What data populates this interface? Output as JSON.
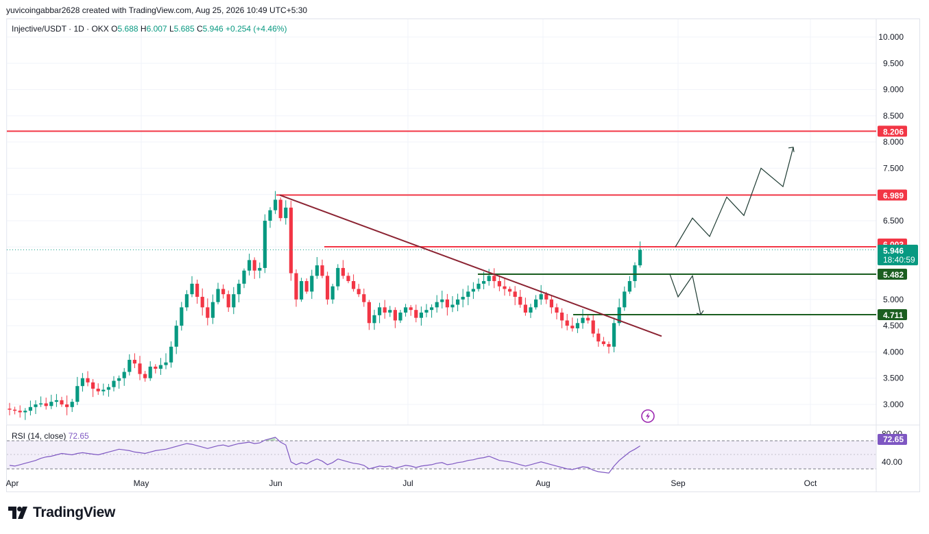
{
  "header": {
    "caption": "yuvicoingabbar2628 created with TradingView.com, Aug 25, 2026 10:49 UTC+5:30"
  },
  "legend": {
    "symbol": "Injective/USDT · 1D · OKX",
    "o_label": "O",
    "o": "5.688",
    "h_label": "H",
    "h": "6.007",
    "l_label": "L",
    "l": "5.685",
    "c_label": "C",
    "c": "5.946",
    "change": "+0.254 (+4.46%)"
  },
  "rsi_legend": {
    "label": "RSI (14, close)",
    "value": "72.65"
  },
  "brand": {
    "name": "TradingView",
    "logo_icon": "tradingview-logo-icon"
  },
  "colors": {
    "up": "#089981",
    "down": "#f23645",
    "resistance": "#f23645",
    "support": "#1b5e20",
    "trendline": "#8b2332",
    "rsi": "#7e57c2",
    "axis_text": "#131722",
    "grid": "#f0f3fa"
  },
  "chart_data": {
    "type": "candlestick",
    "symbol": "Injective/USDT",
    "interval": "1D",
    "exchange": "OKX",
    "y_axis": {
      "ticks": [
        "3.000",
        "3.500",
        "4.000",
        "4.500",
        "5.000",
        "5.500",
        "6.000",
        "6.500",
        "7.000",
        "7.500",
        "8.000",
        "8.500",
        "9.000",
        "9.500",
        "10.000"
      ],
      "ylim": [
        2.3,
        10.5
      ]
    },
    "x_axis": {
      "ticks": [
        "Apr",
        "May",
        "Jun",
        "Jul",
        "Aug",
        "Sep",
        "Oct"
      ]
    },
    "last_price": "5.946",
    "countdown": "18:40:59",
    "closes": [
      2.9,
      2.88,
      2.85,
      2.88,
      2.95,
      3.0,
      3.02,
      2.97,
      3.05,
      3.08,
      3.0,
      2.95,
      3.05,
      3.35,
      3.5,
      3.42,
      3.3,
      3.25,
      3.28,
      3.33,
      3.45,
      3.5,
      3.62,
      3.85,
      3.78,
      3.58,
      3.5,
      3.72,
      3.68,
      3.75,
      3.8,
      4.1,
      4.5,
      4.85,
      5.1,
      5.3,
      5.05,
      4.85,
      4.65,
      4.95,
      5.2,
      5.1,
      4.85,
      5.1,
      5.3,
      5.55,
      5.75,
      5.55,
      5.6,
      6.5,
      6.7,
      6.9,
      6.55,
      6.75,
      5.5,
      5.0,
      5.35,
      5.15,
      5.45,
      5.65,
      5.45,
      5.0,
      5.25,
      5.6,
      5.45,
      5.35,
      5.2,
      5.1,
      4.95,
      4.55,
      4.7,
      4.85,
      4.75,
      4.8,
      4.6,
      4.75,
      4.85,
      4.8,
      4.65,
      4.75,
      4.8,
      4.85,
      4.95,
      5.0,
      4.85,
      4.9,
      5.0,
      5.05,
      5.15,
      5.2,
      5.3,
      5.35,
      5.45,
      5.35,
      5.25,
      5.2,
      5.15,
      5.05,
      4.9,
      4.75,
      4.85,
      5.0,
      5.1,
      5.0,
      4.85,
      4.75,
      4.6,
      4.5,
      4.45,
      4.55,
      4.65,
      4.6,
      4.35,
      4.2,
      4.15,
      4.1,
      4.55,
      4.85,
      5.15,
      5.35,
      5.65,
      5.946
    ],
    "rsi": {
      "values": [
        45,
        44,
        46,
        48,
        50,
        52,
        55,
        57,
        58,
        60,
        62,
        61,
        60,
        62,
        63,
        62,
        61,
        60,
        62,
        64,
        66,
        68,
        67,
        66,
        64,
        63,
        62,
        64,
        66,
        67,
        68,
        70,
        72,
        74,
        76,
        75,
        73,
        71,
        69,
        71,
        73,
        74,
        72,
        74,
        76,
        77,
        78,
        76,
        77,
        81,
        83,
        85,
        78,
        74,
        50,
        46,
        49,
        47,
        51,
        54,
        51,
        46,
        49,
        54,
        52,
        50,
        48,
        47,
        45,
        40,
        42,
        44,
        43,
        44,
        41,
        43,
        45,
        44,
        42,
        44,
        45,
        46,
        48,
        49,
        46,
        47,
        49,
        50,
        52,
        53,
        55,
        56,
        58,
        55,
        52,
        51,
        50,
        48,
        46,
        44,
        46,
        48,
        50,
        48,
        46,
        44,
        42,
        40,
        39,
        41,
        43,
        42,
        38,
        36,
        35,
        34,
        44,
        52,
        58,
        64,
        68,
        72.65
      ],
      "levels": [
        "80.00",
        "40.00"
      ],
      "current": "72.65"
    },
    "levels": [
      {
        "price": "8.206",
        "kind": "resistance"
      },
      {
        "price": "6.989",
        "kind": "resistance"
      },
      {
        "price": "6.003",
        "kind": "resistance"
      },
      {
        "price": "5.482",
        "kind": "support"
      },
      {
        "price": "4.711",
        "kind": "support"
      }
    ],
    "trendline": {
      "from": 6.989,
      "to": 4.3
    },
    "scenario_up_prices": [
      6.0,
      6.55,
      6.2,
      6.95,
      6.6,
      7.5,
      7.15,
      7.9
    ],
    "scenario_down_prices": [
      5.482,
      5.05,
      5.45,
      4.711
    ]
  }
}
